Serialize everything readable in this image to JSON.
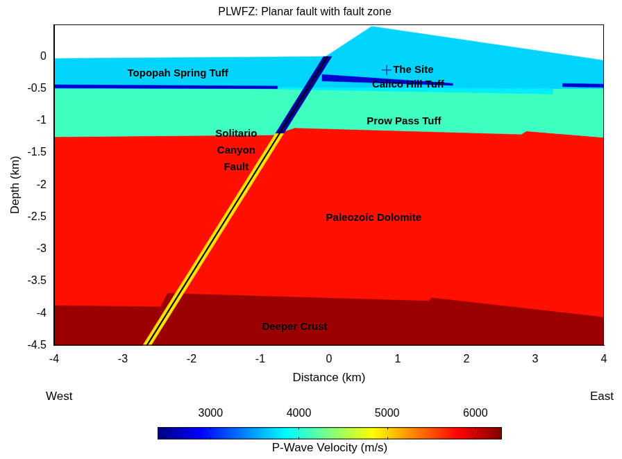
{
  "chart_data": {
    "type": "section",
    "title": "PLWFZ: Planar fault with fault zone",
    "x_label": "Distance (km)",
    "y_label": "Depth (km)",
    "xlim": [
      -4,
      4
    ],
    "ylim": [
      -4.5,
      0.5
    ],
    "xticks": [
      -4,
      -3,
      -2,
      -1,
      0,
      1,
      2,
      3,
      4
    ],
    "yticks": [
      -4.5,
      -4,
      -3.5,
      -3,
      -2.5,
      -2,
      -1.5,
      -1,
      -0.5,
      0
    ],
    "grid": false,
    "x_direction_labels": [
      "West",
      "East"
    ],
    "regions": [
      {
        "velocity": 5750,
        "polygon": [
          [
            -4,
            -1.25
          ],
          [
            -0.8,
            -1.22
          ],
          [
            -0.5,
            -1.11
          ],
          [
            2.8,
            -1.21
          ],
          [
            2.87,
            -1.16
          ],
          [
            4,
            -1.26
          ],
          [
            4,
            -4.5
          ],
          [
            -4,
            -4.5
          ]
        ]
      },
      {
        "velocity": 6200,
        "polygon": [
          [
            -4,
            -3.88
          ],
          [
            -2.45,
            -3.9
          ],
          [
            -2.35,
            -3.69
          ],
          [
            1.45,
            -3.81
          ],
          [
            1.5,
            -3.76
          ],
          [
            3.9,
            -4.05
          ],
          [
            4,
            -4.07
          ],
          [
            4,
            -4.5
          ],
          [
            -4,
            -4.5
          ]
        ]
      },
      {
        "velocity": 4100,
        "polygon": [
          [
            -4,
            -0.49
          ],
          [
            4,
            -0.48
          ],
          [
            4,
            -1.26
          ],
          [
            2.87,
            -1.16
          ],
          [
            2.8,
            -1.21
          ],
          [
            -0.5,
            -1.11
          ],
          [
            -0.8,
            -1.22
          ],
          [
            -4,
            -1.25
          ]
        ]
      },
      {
        "velocity": 3700,
        "polygon": [
          [
            -4,
            -0.03
          ],
          [
            -0.05,
            0
          ],
          [
            0.62,
            0.47
          ],
          [
            4,
            -0.06
          ],
          [
            4,
            -0.5
          ],
          [
            3.25,
            -0.5
          ],
          [
            3.25,
            -0.58
          ],
          [
            -0.6,
            -0.5
          ],
          [
            -4,
            -0.5
          ]
        ]
      },
      {
        "velocity": 3800,
        "polygon": [
          [
            -1.6,
            -0.48
          ],
          [
            3.25,
            -0.5
          ],
          [
            3.25,
            -0.58
          ],
          [
            -0.6,
            -0.51
          ]
        ]
      },
      {
        "velocity": 2700,
        "polygon": [
          [
            -4,
            -0.44
          ],
          [
            -0.75,
            -0.46
          ],
          [
            -0.75,
            -0.5
          ],
          [
            -4,
            -0.49
          ]
        ]
      },
      {
        "velocity": 2700,
        "polygon": [
          [
            -0.1,
            -0.28
          ],
          [
            1.8,
            -0.42
          ],
          [
            1.8,
            -0.45
          ],
          [
            -0.1,
            -0.38
          ]
        ]
      },
      {
        "velocity": 2700,
        "polygon": [
          [
            3.4,
            -0.42
          ],
          [
            4,
            -0.43
          ],
          [
            4,
            -0.48
          ],
          [
            3.4,
            -0.47
          ]
        ]
      },
      {
        "velocity": 2500,
        "polygon": [
          [
            -0.08,
            0
          ],
          [
            0.04,
            0
          ],
          [
            -0.66,
            -1.2
          ],
          [
            -0.78,
            -1.2
          ]
        ]
      },
      {
        "velocity": 4950,
        "polygon": [
          [
            -0.78,
            -1.2
          ],
          [
            -0.66,
            -1.2
          ],
          [
            -2.59,
            -4.5
          ],
          [
            -2.71,
            -4.5
          ]
        ]
      }
    ],
    "fault_line": {
      "color": "#000000",
      "points": [
        [
          -0.02,
          0
        ],
        [
          -2.65,
          -4.5
        ]
      ]
    },
    "site": {
      "text": "The Site",
      "x": 0.84,
      "y": -0.21,
      "marker": "plus",
      "color": "#1f3fbf"
    },
    "annotations": [
      {
        "text": "Topopah Spring Tuff",
        "x": -2.2,
        "y": -0.26
      },
      {
        "text": "Calico Hill Tuff",
        "x": 1.15,
        "y": -0.44
      },
      {
        "text": "Prow Pass Tuff",
        "x": 1.09,
        "y": -1.01
      },
      {
        "text": "Solitario\nCanyon\nFault",
        "x": -1.35,
        "y": -1.46
      },
      {
        "text": "Paleozoic Dolomite",
        "x": 0.65,
        "y": -2.51
      },
      {
        "text": "Deeper Crust",
        "x": -0.5,
        "y": -4.21
      }
    ],
    "colorbar": {
      "label": "P-Wave Velocity (m/s)",
      "range": [
        2400,
        6300
      ],
      "ticks": [
        3000,
        4000,
        5000,
        6000
      ]
    }
  }
}
